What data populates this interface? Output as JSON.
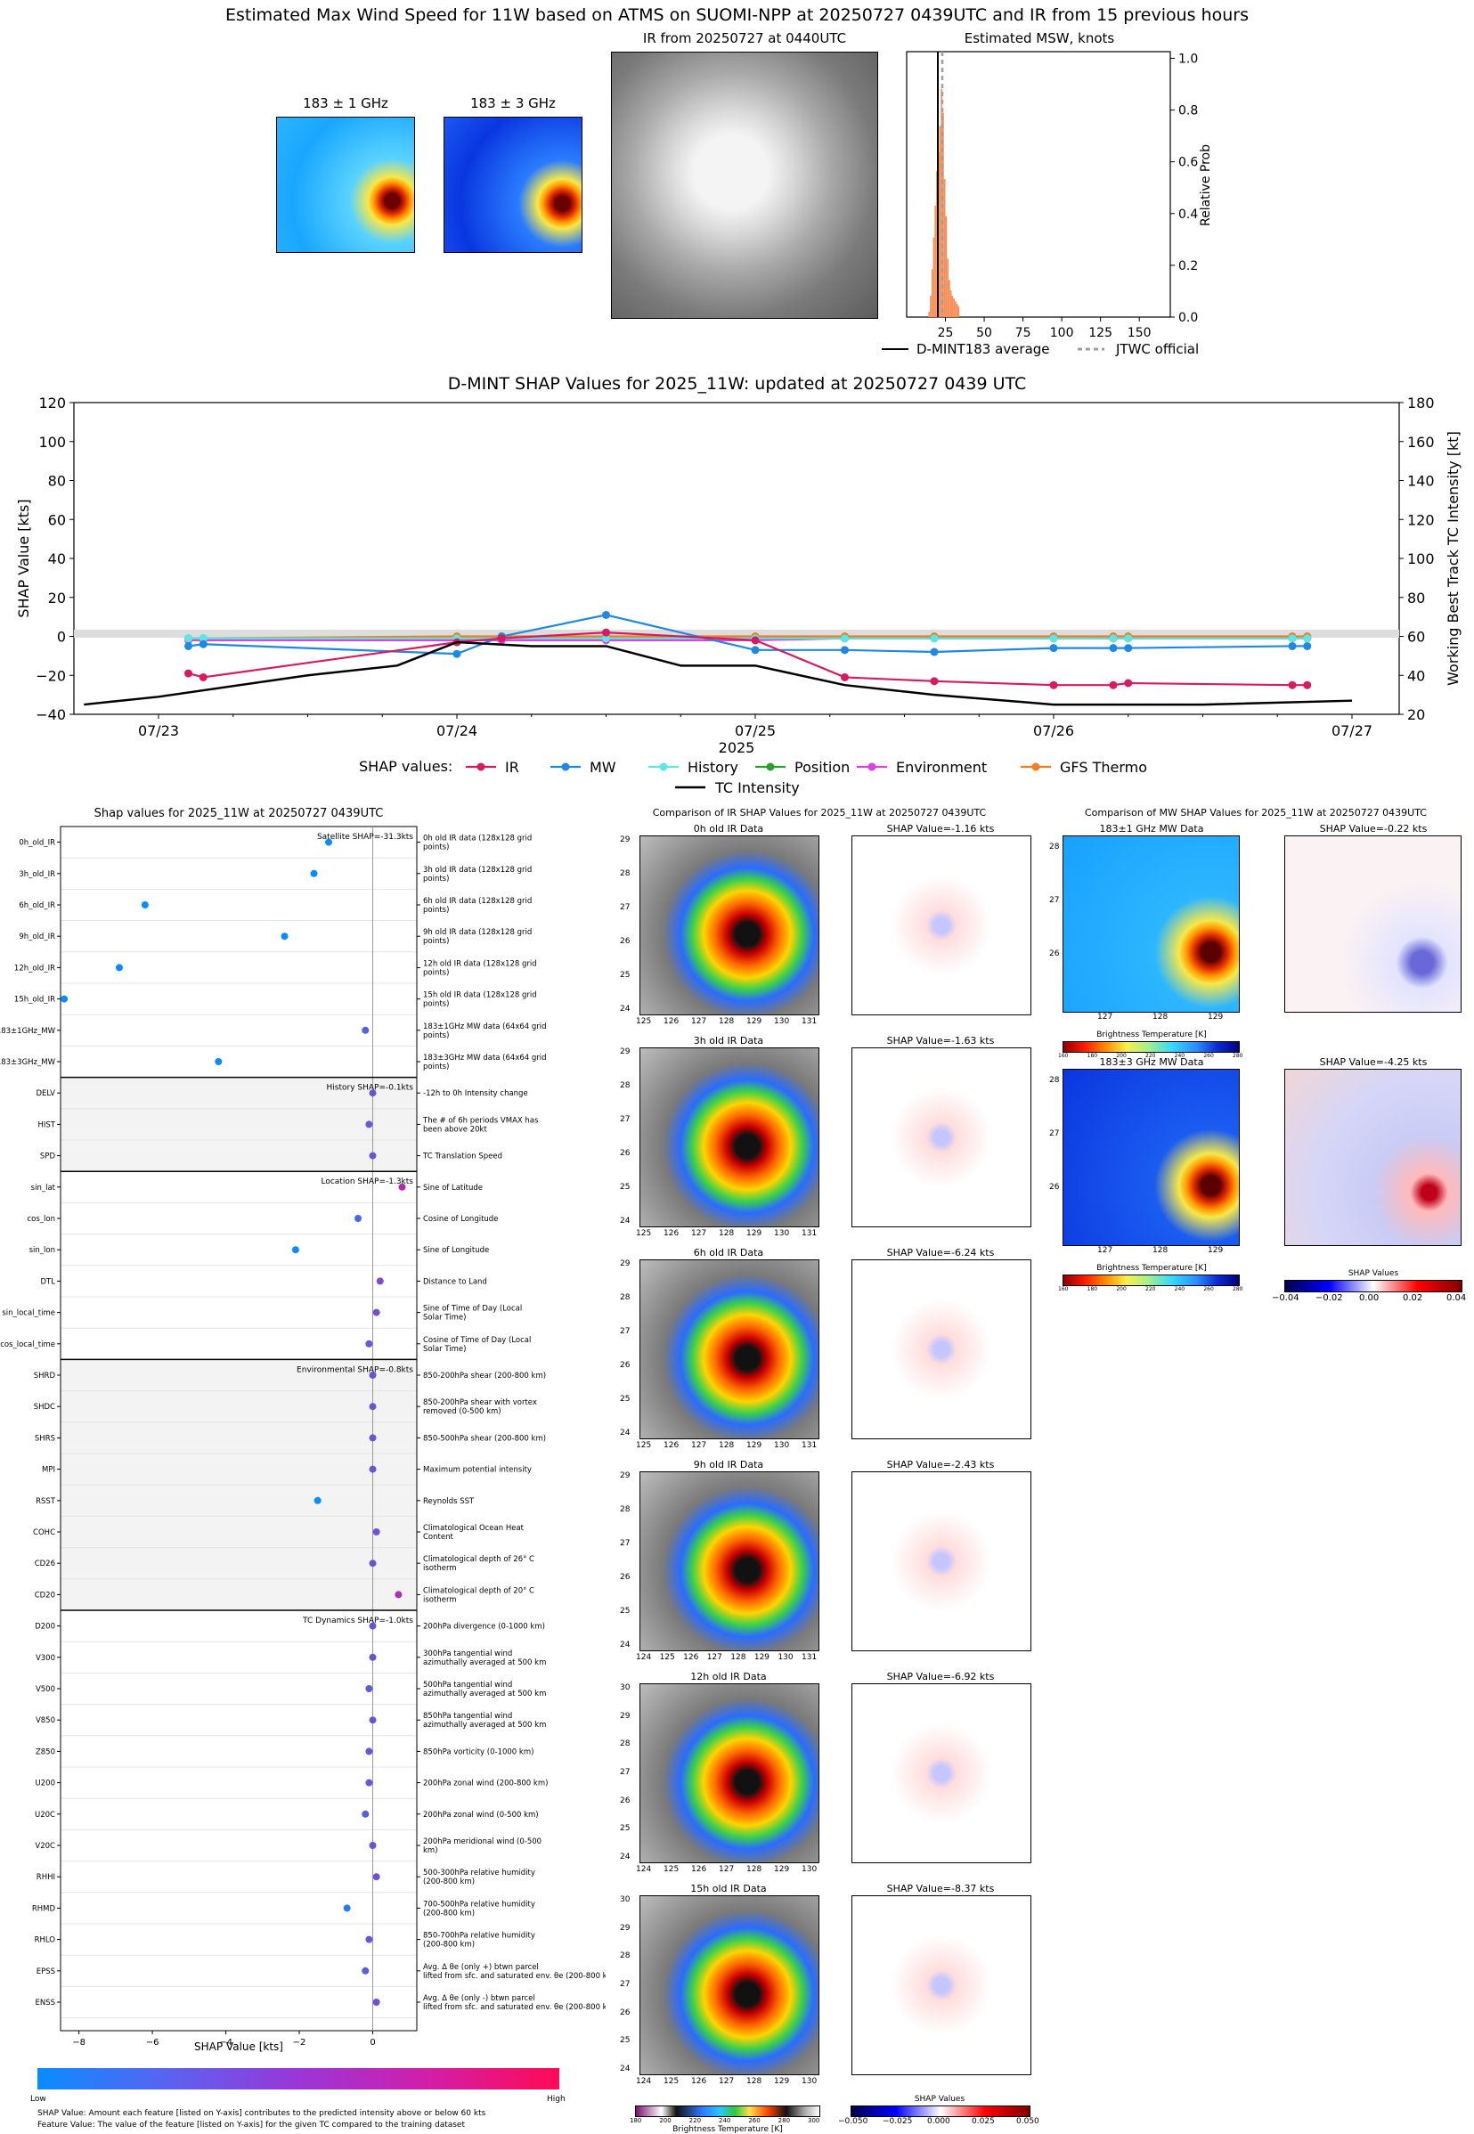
{
  "header": {
    "title": "Estimated Max Wind Speed for 11W based on ATMS on SUOMI-NPP at 20250727 0439UTC and IR from 15 previous hours",
    "mw1_label": "183 ± 1 GHz",
    "mw3_label": "183 ± 3 GHz",
    "ir_label": "IR from 20250727 at 0440UTC",
    "hist_title": "Estimated MSW, knots",
    "hist_ylabel": "Relative Prob",
    "hist_xticks": [
      "25",
      "50",
      "75",
      "100",
      "125",
      "150"
    ],
    "hist_yticks": [
      "0.0",
      "0.2",
      "0.4",
      "0.6",
      "0.8",
      "1.0"
    ],
    "legend_dmint": "D-MINT183 average",
    "legend_jtwc": "JTWC official",
    "colors": {
      "hist_bar": "#f7915a",
      "dmint": "#000000",
      "jtwc": "#9e9e9e"
    }
  },
  "timeseries": {
    "title": "D-MINT SHAP Values for 2025_11W: updated at 20250727 0439 UTC",
    "ylabel_left": "SHAP Value [kts]",
    "ylabel_right": "Working Best Track TC Intensity [kt]",
    "yticks_left": [
      "120",
      "100",
      "80",
      "60",
      "40",
      "20",
      "0",
      "−20",
      "−40"
    ],
    "yticks_right": [
      "180",
      "160",
      "140",
      "120",
      "100",
      "80",
      "60",
      "40",
      "20"
    ],
    "xticks": [
      "07/23",
      "07/24",
      "07/25",
      "07/26",
      "07/27"
    ],
    "xlabel_year": "2025",
    "legend_title": "SHAP values:",
    "legend_items": [
      {
        "name": "IR",
        "color": "#d81b60"
      },
      {
        "name": "MW",
        "color": "#1e88e5"
      },
      {
        "name": "History",
        "color": "#5ce6e6"
      },
      {
        "name": "Position",
        "color": "#2ca02c"
      },
      {
        "name": "Environment",
        "color": "#e040e0"
      },
      {
        "name": "GFS Thermo",
        "color": "#f57c1f"
      }
    ],
    "intensity_label": "TC Intensity"
  },
  "chart_data": [
    {
      "type": "line",
      "title": "D-MINT SHAP Values for 2025_11W: updated at 20250727 0439 UTC",
      "xlabel": "2025",
      "ylabel": "SHAP Value [kts]",
      "ylim": [
        -40,
        120
      ],
      "y2label": "Working Best Track TC Intensity [kt]",
      "y2lim": [
        20,
        180
      ],
      "x": [
        0.1,
        0.15,
        1.0,
        1.15,
        1.5,
        2.0,
        2.3,
        2.6,
        3.0,
        3.2,
        3.25,
        3.8,
        3.85
      ],
      "series": [
        {
          "name": "IR",
          "values": [
            -19,
            -21,
            -3,
            -1,
            2,
            -2,
            -21,
            -23,
            -25,
            -25,
            -24,
            -25,
            -25
          ]
        },
        {
          "name": "MW",
          "values": [
            -5,
            -4,
            -9,
            0,
            11,
            -7,
            -7,
            -8,
            -6,
            -6,
            -6,
            -5,
            -5
          ]
        },
        {
          "name": "History",
          "values": [
            -1,
            -1,
            -1,
            -1,
            -1,
            -1,
            -1,
            -1,
            -1,
            -1,
            -1,
            -1,
            -1
          ]
        },
        {
          "name": "Position",
          "values": [
            -1,
            -1,
            -1,
            -1,
            -1,
            -1,
            -1,
            -1,
            -1,
            -1,
            -1,
            -1,
            -1
          ]
        },
        {
          "name": "Environment",
          "values": [
            -2,
            -2,
            -2,
            -2,
            -2,
            -2,
            -1,
            -1,
            -1,
            -1,
            -1,
            -1,
            -1
          ]
        },
        {
          "name": "GFS Thermo",
          "values": [
            -1,
            -1,
            0,
            0,
            0,
            0,
            0,
            0,
            0,
            0,
            0,
            0,
            0
          ]
        },
        {
          "name": "TC Intensity",
          "axis": "right",
          "x": [
            -0.25,
            0.0,
            0.5,
            0.8,
            1.0,
            1.25,
            1.5,
            1.6,
            1.75,
            2.0,
            2.3,
            2.6,
            3.0,
            3.5,
            4.0
          ],
          "values": [
            25,
            29,
            40,
            45,
            57,
            55,
            55,
            51,
            45,
            45,
            35,
            30,
            25,
            25,
            27
          ]
        }
      ],
      "xticks": [
        "07/23",
        "07/24",
        "07/25",
        "07/26",
        "07/27"
      ]
    },
    {
      "type": "scatter",
      "title": "Shap values for 2025_11W at 20250727 0439UTC",
      "xlabel": "SHAP Value [kts]",
      "xlim": [
        -8.5,
        1.2
      ],
      "xticks": [
        "−8",
        "−6",
        "−4",
        "−2",
        "0"
      ],
      "groups": [
        {
          "label": "Satellite SHAP=-31.3kts",
          "features": [
            {
              "name": "0h_old_IR",
              "desc": "0h old IR data (128x128 grid points)",
              "value": -1.2
            },
            {
              "name": "3h_old_IR",
              "desc": "3h old IR data (128x128 grid points)",
              "value": -1.6
            },
            {
              "name": "6h_old_IR",
              "desc": "6h old IR data (128x128 grid points)",
              "value": -6.2
            },
            {
              "name": "9h_old_IR",
              "desc": "9h old IR data (128x128 grid points)",
              "value": -2.4
            },
            {
              "name": "12h_old_IR",
              "desc": "12h old IR data (128x128 grid points)",
              "value": -6.9
            },
            {
              "name": "15h_old_IR",
              "desc": "15h old IR data (128x128 grid points)",
              "value": -8.4
            },
            {
              "name": "183±1GHz_MW",
              "desc": "183±1GHz MW data (64x64 grid points)",
              "value": -0.2
            },
            {
              "name": "183±3GHz_MW",
              "desc": "183±3GHz MW data (64x64 grid points)",
              "value": -4.2
            }
          ]
        },
        {
          "label": "History SHAP=-0.1kts",
          "features": [
            {
              "name": "DELV",
              "desc": "-12h to 0h Intensity change",
              "value": 0.0
            },
            {
              "name": "HIST",
              "desc": "The # of 6h periods VMAX has been above 20kt",
              "value": -0.1
            },
            {
              "name": "SPD",
              "desc": "TC Translation Speed",
              "value": 0.0
            }
          ]
        },
        {
          "label": "Location SHAP=-1.3kts",
          "features": [
            {
              "name": "sin_lat",
              "desc": "Sine of Latitude",
              "value": 0.8
            },
            {
              "name": "cos_lon",
              "desc": "Cosine of Longitude",
              "value": -0.4
            },
            {
              "name": "sin_lon",
              "desc": "Sine of Longitude",
              "value": -2.1
            },
            {
              "name": "DTL",
              "desc": "Distance to Land",
              "value": 0.2
            },
            {
              "name": "sin_local_time",
              "desc": "Sine of Time of Day (Local Solar Time)",
              "value": 0.1
            },
            {
              "name": "cos_local_time",
              "desc": "Cosine of Time of Day (Local Solar Time)",
              "value": -0.1
            }
          ]
        },
        {
          "label": "Environmental SHAP=-0.8kts",
          "features": [
            {
              "name": "SHRD",
              "desc": "850-200hPa shear (200-800 km)",
              "value": 0.0
            },
            {
              "name": "SHDC",
              "desc": "850-200hPa shear with vortex removed (0-500 km)",
              "value": 0.0
            },
            {
              "name": "SHRS",
              "desc": "850-500hPa shear (200-800 km)",
              "value": 0.0
            },
            {
              "name": "MPI",
              "desc": "Maximum potential intensity",
              "value": 0.0
            },
            {
              "name": "RSST",
              "desc": "Reynolds SST",
              "value": -1.5
            },
            {
              "name": "COHC",
              "desc": "Climatological Ocean Heat Content",
              "value": 0.1
            },
            {
              "name": "CD26",
              "desc": "Climatological depth of 26° C isotherm",
              "value": 0.0
            },
            {
              "name": "CD20",
              "desc": "Climatological depth of 20° C isotherm",
              "value": 0.7
            }
          ]
        },
        {
          "label": "TC Dynamics SHAP=-1.0kts",
          "features": [
            {
              "name": "D200",
              "desc": "200hPa divergence (0-1000 km)",
              "value": 0.0
            },
            {
              "name": "V300",
              "desc": "300hPa tangential wind azimuthally averaged at 500 km",
              "value": 0.0
            },
            {
              "name": "V500",
              "desc": "500hPa tangential wind azimuthally averaged at 500 km",
              "value": -0.1
            },
            {
              "name": "V850",
              "desc": "850hPa tangential wind azimuthally averaged at 500 km",
              "value": 0.0
            },
            {
              "name": "Z850",
              "desc": "850hPa vorticity (0-1000 km)",
              "value": -0.1
            },
            {
              "name": "U200",
              "desc": "200hPa zonal wind (200-800 km)",
              "value": -0.1
            },
            {
              "name": "U20C",
              "desc": "200hPa zonal wind (0-500 km)",
              "value": -0.2
            },
            {
              "name": "V20C",
              "desc": "200hPa meridional wind (0-500 km)",
              "value": 0.0
            },
            {
              "name": "RHHI",
              "desc": "500-300hPa relative humidity (200-800 km)",
              "value": 0.1
            },
            {
              "name": "RHMD",
              "desc": "700-500hPa relative humidity (200-800 km)",
              "value": -0.7
            },
            {
              "name": "RHLO",
              "desc": "850-700hPa relative humidity (200-800 km)",
              "value": -0.1
            },
            {
              "name": "EPSS",
              "desc": "Avg. Δ θe (only +) btwn parcel lifted from sfc. and saturated env. θe (200-800 km)",
              "value": -0.2
            },
            {
              "name": "ENSS",
              "desc": "Avg. Δ θe (only -) btwn parcel lifted from sfc. and saturated env. θe (200-800 km)",
              "value": 0.1
            }
          ]
        }
      ]
    }
  ],
  "shap_panel": {
    "title": "Shap values for 2025_11W at 20250727 0439UTC",
    "xlabel": "SHAP Value [kts]",
    "colorbar_low": "Low",
    "colorbar_high": "High",
    "note1": "SHAP Value: Amount each feature [listed on Y-axis] contributes to the predicted intensity above or below 60 kts",
    "note2": "Feature Value: The value of the feature [listed on Y-axis] for the given TC compared to the training dataset"
  },
  "ir_compare": {
    "title": "Comparison of IR SHAP Values for 2025_11W at 20250727 0439UTC",
    "rows": [
      {
        "label": "0h old IR Data",
        "shap": "SHAP Value=-1.16 kts",
        "yticks": [
          "29",
          "28",
          "27",
          "26",
          "25",
          "24"
        ],
        "xticks": [
          "125",
          "126",
          "127",
          "128",
          "129",
          "130",
          "131"
        ]
      },
      {
        "label": "3h old IR Data",
        "shap": "SHAP Value=-1.63 kts",
        "yticks": [
          "29",
          "28",
          "27",
          "26",
          "25",
          "24"
        ],
        "xticks": [
          "125",
          "126",
          "127",
          "128",
          "129",
          "130",
          "131"
        ]
      },
      {
        "label": "6h old IR Data",
        "shap": "SHAP Value=-6.24 kts",
        "yticks": [
          "29",
          "28",
          "27",
          "26",
          "25",
          "24"
        ],
        "xticks": [
          "125",
          "126",
          "127",
          "128",
          "129",
          "130",
          "131"
        ]
      },
      {
        "label": "9h old IR Data",
        "shap": "SHAP Value=-2.43 kts",
        "yticks": [
          "29",
          "28",
          "27",
          "26",
          "25",
          "24"
        ],
        "xticks": [
          "124",
          "125",
          "126",
          "127",
          "128",
          "129",
          "130",
          "131"
        ]
      },
      {
        "label": "12h old IR Data",
        "shap": "SHAP Value=-6.92 kts",
        "yticks": [
          "30",
          "29",
          "28",
          "27",
          "26",
          "25",
          "24"
        ],
        "xticks": [
          "124",
          "125",
          "126",
          "127",
          "128",
          "129",
          "130"
        ]
      },
      {
        "label": "15h old IR Data",
        "shap": "SHAP Value=-8.37 kts",
        "yticks": [
          "30",
          "29",
          "28",
          "27",
          "26",
          "25",
          "24"
        ],
        "xticks": [
          "124",
          "125",
          "126",
          "127",
          "128",
          "129",
          "130"
        ]
      }
    ],
    "cbar_label": "Brightness Temperature [K]",
    "cbar_ticks": [
      "180",
      "200",
      "220",
      "240",
      "260",
      "280",
      "300"
    ],
    "shap_cbar_label": "SHAP Values",
    "shap_cbar_ticks": [
      "−0.050",
      "−0.025",
      "0.000",
      "0.025",
      "0.050"
    ]
  },
  "mw_compare": {
    "title": "Comparison of MW SHAP Values for 2025_11W at 20250727 0439UTC",
    "rows": [
      {
        "label": "183±1 GHz MW Data",
        "shap": "SHAP Value=-0.22 kts"
      },
      {
        "label": "183±3 GHz MW Data",
        "shap": "SHAP Value=-4.25 kts"
      }
    ],
    "yticks": [
      "28",
      "27",
      "26"
    ],
    "xticks": [
      "127",
      "128",
      "129"
    ],
    "cbar_label": "Brightness Temperature [K]",
    "cbar_ticks": [
      "160",
      "180",
      "200",
      "220",
      "240",
      "260",
      "280"
    ],
    "shap_cbar_label": "SHAP Values",
    "shap_cbar_ticks": [
      "−0.04",
      "−0.02",
      "0.00",
      "0.02",
      "0.04"
    ]
  }
}
